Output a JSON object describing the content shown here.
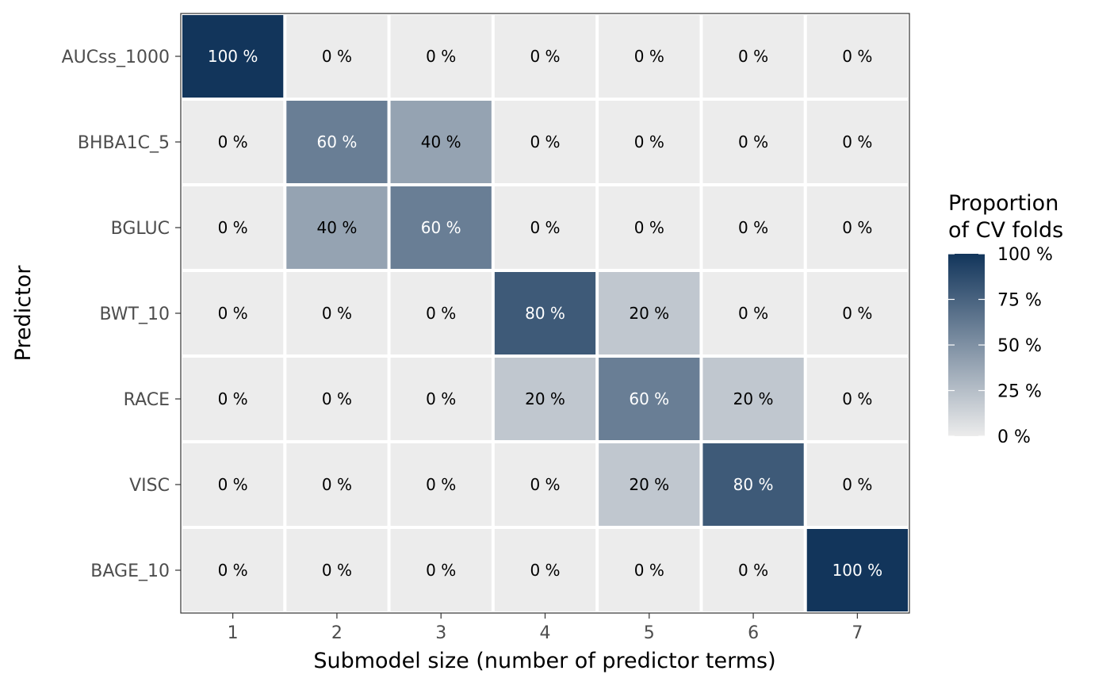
{
  "chart_data": {
    "type": "heatmap",
    "title": "",
    "xlabel": "Submodel size (number of predictor terms)",
    "ylabel": "Predictor",
    "x": [
      1,
      2,
      3,
      4,
      5,
      6,
      7
    ],
    "x_tick_labels": [
      "1",
      "2",
      "3",
      "4",
      "5",
      "6",
      "7"
    ],
    "y": [
      "AUCss_1000",
      "BHBA1C_5",
      "BGLUC",
      "BWT_10",
      "RACE",
      "VISC",
      "BAGE_10"
    ],
    "values": [
      [
        100,
        0,
        0,
        0,
        0,
        0,
        0
      ],
      [
        0,
        60,
        40,
        0,
        0,
        0,
        0
      ],
      [
        0,
        40,
        60,
        0,
        0,
        0,
        0
      ],
      [
        0,
        0,
        0,
        80,
        20,
        0,
        0
      ],
      [
        0,
        0,
        0,
        20,
        60,
        20,
        0
      ],
      [
        0,
        0,
        0,
        0,
        20,
        80,
        0
      ],
      [
        0,
        0,
        0,
        0,
        0,
        0,
        100
      ]
    ],
    "value_unit": "%",
    "legend": {
      "title_lines": [
        "Proportion",
        "of CV folds"
      ],
      "placement": "right",
      "range": [
        0,
        100
      ],
      "tick_labels": [
        "100 %",
        "75 %",
        "50 %",
        "25 %",
        "0 %"
      ],
      "tick_values": [
        100,
        75,
        50,
        25,
        0
      ]
    },
    "colors": {
      "low": "#ececec",
      "high": "#12355b",
      "label_dark": "#000000",
      "label_light": "#ffffff",
      "axis_text": "#4d4d4d"
    }
  }
}
